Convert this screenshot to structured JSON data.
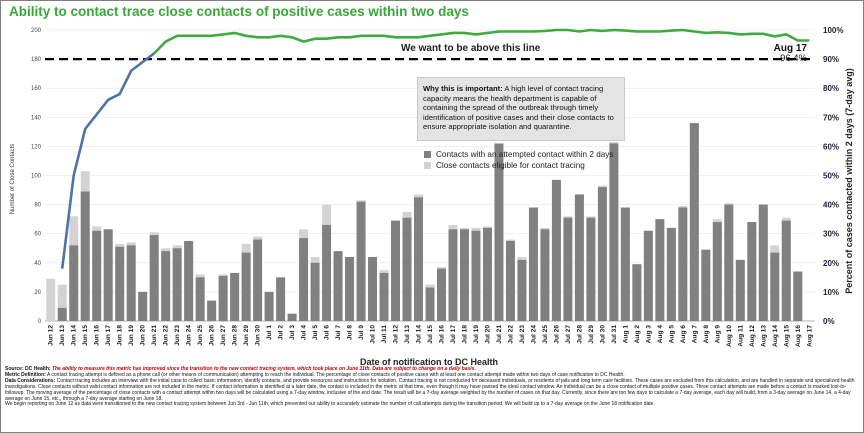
{
  "title": "Ability to contact trace close contacts of positive cases within two days",
  "target_label": "We want to be above this line",
  "latest": {
    "date": "Aug 17",
    "value": "96.4%"
  },
  "why_box": {
    "heading": "Why this is important:",
    "text": " A high level of contact tracing capacity means the health department is capable of containing the spread of the outbreak through timely identification of positive cases and their close contacts to ensure appropriate isolation and quarantine."
  },
  "legend": [
    {
      "label": "Contacts with an attempted contact within 2 days",
      "color": "#808080"
    },
    {
      "label": "Close contacts eligible for contact tracing",
      "color": "#d3d3d3"
    }
  ],
  "colors": {
    "attempted": "#808080",
    "eligible": "#d3d3d3",
    "line": "#3fab3f",
    "line_early": "#4f73a8",
    "target": "#000000",
    "title": "#3aa63a"
  },
  "footer": {
    "source_label": "Source: DC Health;",
    "source_note": " The ability to measure this metric has improved since the transition to the new contact tracing system, which took place on June 11th. Data are subject to change on a daily basis.",
    "metric_label": "Metric Definition:",
    "metric_text": " A contact tracing attempt is defined as a phone call (or other means of communication) attempting to reach the individual. The percentage of close contacts of positive cases with at least one contact attempt made within two days of case notification to DC Health.",
    "data_label": "Data Considerations:",
    "data_text": " Contact tracing includes an interview with the initial case to collect basic information, identify contacts, and provide resources and instructions for isolation. Contact tracing is not conducted for deceased individuals, or residents of jails and long term care facilities. These cases are excluded from this calculation, and are handled in separate and specialized health investigations. Close contacts without valid contact information are not included in the metric. If contact information is identified at a later date, the contact is included in the metric at that time, even though it may have passed the ideal contact window. An individual can be a close contact of multiple positive cases. Three contact attempts are made before a contact is marked lost-to-followup. The moving average of the percentage of close contacts with a contact attempt within two days will be calculated using a 7-day window, inclusive of the end date. The result will be a 7-day average weighted by the number of cases on that day. Currently, since there are too few days to calculate a 7-day average, each day will build, from a 3-day average on June 14, a 4-day average on June 15, etc., through a 7-day average starting on June 18.",
    "extra_text": "We begin reporting on June 12 as data were transitioned to the new contact tracing system between Jun 3rd - Jun 11th, which prevented our ability to accurately estimate the number of call attempts during the transition period. We will build up to a 7-day average on the June 18 notification date."
  },
  "chart_data": {
    "type": "bar",
    "xlabel": "Date of notification to DC Health",
    "ylabel": "Number of Close Contacts",
    "y2label": "Percent of cases contacted within 2 days (7-day avg)",
    "ylim": [
      0,
      200
    ],
    "y2lim": [
      0,
      100
    ],
    "yticks": [
      0,
      20,
      40,
      60,
      80,
      100,
      120,
      140,
      160,
      180,
      200
    ],
    "y2ticks": [
      "0%",
      "10%",
      "20%",
      "30%",
      "40%",
      "50%",
      "60%",
      "70%",
      "80%",
      "90%",
      "100%"
    ],
    "target_percent": 90,
    "grid": true,
    "categories": [
      "Jun 12",
      "Jun 13",
      "Jun 14",
      "Jun 15",
      "Jun 16",
      "Jun 17",
      "Jun 18",
      "Jun 19",
      "Jun 20",
      "Jun 21",
      "Jun 22",
      "Jun 23",
      "Jun 24",
      "Jun 25",
      "Jun 26",
      "Jun 27",
      "Jun 28",
      "Jun 29",
      "Jun 30",
      "Jul 1",
      "Jul 2",
      "Jul 3",
      "Jul 4",
      "Jul 5",
      "Jul 6",
      "Jul 7",
      "Jul 8",
      "Jul 9",
      "Jul 10",
      "Jul 11",
      "Jul 12",
      "Jul 13",
      "Jul 14",
      "Jul 15",
      "Jul 16",
      "Jul 17",
      "Jul 18",
      "Jul 19",
      "Jul 20",
      "Jul 21",
      "Jul 22",
      "Jul 23",
      "Jul 24",
      "Jul 25",
      "Jul 26",
      "Jul 27",
      "Jul 28",
      "Jul 29",
      "Jul 30",
      "Jul 31",
      "Aug 1",
      "Aug 2",
      "Aug 3",
      "Aug 4",
      "Aug 5",
      "Aug 6",
      "Aug 7",
      "Aug 8",
      "Aug 9",
      "Aug 10",
      "Aug 11",
      "Aug 12",
      "Aug 13",
      "Aug 14",
      "Aug 15",
      "Aug 16",
      "Aug 17"
    ],
    "series": [
      {
        "name": "Contacts with an attempted contact within 2 days",
        "values": [
          0,
          9,
          52,
          89,
          62,
          63,
          51,
          52,
          20,
          59,
          48,
          50,
          55,
          30,
          14,
          31,
          33,
          47,
          56,
          20,
          30,
          5,
          57,
          40,
          66,
          48,
          44,
          82,
          44,
          33,
          69,
          71,
          85,
          23,
          36,
          63,
          63,
          62,
          64,
          122,
          55,
          42,
          78,
          63,
          97,
          71,
          87,
          71,
          92,
          122,
          78,
          39,
          62,
          70,
          64,
          78,
          136,
          49,
          68,
          80,
          42,
          68,
          80,
          47,
          69,
          34,
          0
        ],
        "stacked_total": [
          29,
          25,
          72,
          103,
          65,
          63,
          53,
          54,
          20,
          61,
          50,
          52,
          55,
          32,
          14,
          32,
          33,
          53,
          58,
          20,
          30,
          5,
          63,
          44,
          80,
          48,
          44,
          83,
          44,
          35,
          69,
          75,
          87,
          25,
          37,
          66,
          64,
          64,
          65,
          122,
          56,
          44,
          78,
          64,
          97,
          72,
          87,
          72,
          93,
          123,
          78,
          39,
          62,
          70,
          64,
          79,
          136,
          49,
          70,
          81,
          42,
          68,
          80,
          52,
          71,
          34,
          0
        ]
      },
      {
        "name": "Percent of cases contacted within 2 days (7-day avg)",
        "axis": "right",
        "percent_values": [
          null,
          18,
          50,
          66,
          71,
          76,
          78,
          86,
          89,
          92,
          96,
          98,
          98,
          98,
          98,
          98.5,
          99,
          98,
          97.5,
          97.5,
          98,
          97.5,
          96,
          97,
          97,
          97.5,
          97.5,
          98,
          98,
          98,
          97.5,
          97.5,
          97.5,
          98,
          98.5,
          99,
          99,
          98.5,
          99,
          99.5,
          99.5,
          99.5,
          99.5,
          99.7,
          100,
          100,
          99.5,
          100,
          99.7,
          100,
          99.8,
          99.5,
          99.5,
          99.5,
          99.8,
          100,
          99.5,
          99,
          99.2,
          99,
          98.5,
          98.7,
          98.7,
          97.8,
          98.5,
          96.4,
          96.4
        ]
      }
    ]
  }
}
